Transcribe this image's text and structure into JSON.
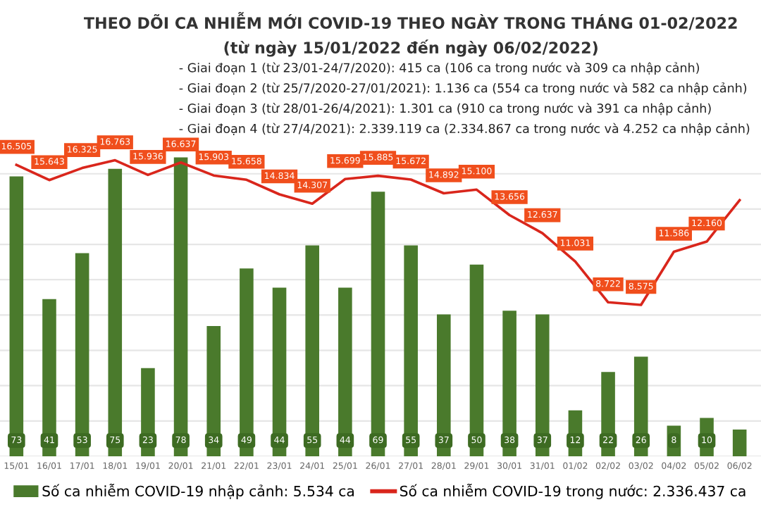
{
  "chart_data": {
    "type": "bar",
    "title": "THEO DÕI CA NHIỄM MỚI COVID-19 THEO NGÀY TRONG THÁNG 01-02/2022",
    "subtitle": "(từ ngày 15/01/2022 đến ngày 06/02/2022)",
    "annotations": [
      "- Giai đoạn 1 (từ 23/01-24/7/2020): 415 ca (106 ca trong nước và 309 ca nhập cảnh)",
      "- Giai đoạn 2 (từ 25/7/2020-27/01/2021): 1.136 ca (554 ca trong nước và 582 ca nhập cảnh)",
      "- Giai đoạn 3 (từ 28/01-26/4/2021): 1.301 ca (910 ca trong nước và 391 ca nhập cảnh)",
      "- Giai đoạn 4 (từ 27/4/2021): 2.339.119 ca (2.334.867 ca trong nước và 4.252 ca nhập cảnh)"
    ],
    "categories": [
      "15/01",
      "16/01",
      "17/01",
      "18/01",
      "19/01",
      "20/01",
      "21/01",
      "22/01",
      "23/01",
      "24/01",
      "25/01",
      "26/01",
      "27/01",
      "28/01",
      "29/01",
      "30/01",
      "31/01",
      "01/02",
      "02/02",
      "03/02",
      "04/02",
      "05/02",
      "06/02"
    ],
    "series": [
      {
        "name": "Số ca nhiễm COVID-19 nhập cảnh: 5.534 ca",
        "color": "#4a7a2c",
        "values": [
          73,
          41,
          53,
          75,
          23,
          78,
          34,
          49,
          44,
          55,
          44,
          69,
          55,
          37,
          50,
          38,
          37,
          12,
          22,
          26,
          8,
          10,
          7
        ],
        "value_labels": [
          "73",
          "41",
          "53",
          "75",
          "23",
          "78",
          "34",
          "49",
          "44",
          "55",
          "44",
          "69",
          "55",
          "37",
          "50",
          "38",
          "37",
          "12",
          "22",
          "26",
          "8",
          "10",
          null
        ]
      },
      {
        "name": "Số ca nhiễm COVID-19 trong nước: 2.336.437 ca",
        "type": "line",
        "axis": "y2",
        "color": "#d9261c",
        "values": [
          16505,
          15643,
          16325,
          16763,
          15936,
          16637,
          15903,
          15658,
          14834,
          14307,
          15699,
          15885,
          15672,
          14892,
          15100,
          13656,
          12637,
          11031,
          8722,
          8575,
          11586,
          12160,
          14500
        ],
        "value_labels": [
          "16.505",
          "15.643",
          "16.325",
          "16.763",
          "15.936",
          "16.637",
          "15.903",
          "15.658",
          "14.834",
          "14.307",
          "15.699",
          "15.885",
          "15.672",
          "14.892",
          "15.100",
          "13.656",
          "12.637",
          "11.031",
          "8.722",
          "8.575",
          "11.586",
          "12.160",
          null
        ]
      }
    ],
    "ylim": [
      0,
      82
    ],
    "y2lim": [
      0,
      17800
    ],
    "y2ticks": [
      {
        "value": 0,
        "label": null
      },
      {
        "value": 2000,
        "label": null
      },
      {
        "value": 4000,
        "label": null
      },
      {
        "value": 6000,
        "label": null
      },
      {
        "value": 8000,
        "label": null
      },
      {
        "value": 10000,
        "label": null
      },
      {
        "value": 12000,
        "label": null
      },
      {
        "value": 14000,
        "label": null
      },
      {
        "value": 16000,
        "label": null
      }
    ],
    "tick_labels": "x",
    "grid": "y",
    "legend": "bottom",
    "marker": "none"
  }
}
